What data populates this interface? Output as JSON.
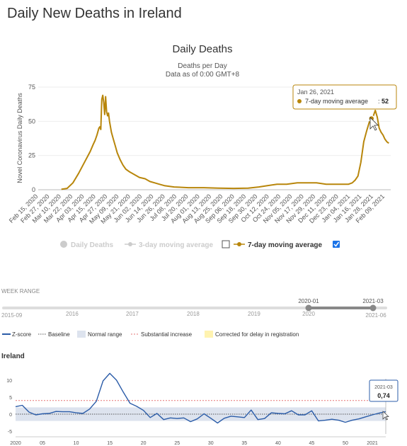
{
  "page": {
    "title": "Daily New Deaths in Ireland"
  },
  "colors": {
    "deaths_line": "#b8860b",
    "disabled_legend": "#cccccc",
    "checkbox_checked": "#1a73e8",
    "zscore_line": "#2b5ca8",
    "baseline": "#555555",
    "normal_range": "#dde3ee",
    "substantial_increase": "#e57373",
    "delay_correction": "#fff3b0",
    "week_range_track": "#dddddd",
    "week_range_selected": "#888888"
  },
  "chart_data": [
    {
      "type": "line",
      "title": "Daily Deaths",
      "subtitle": "Deaths per Day",
      "subtitle2": "Data as of 0:00 GMT+8",
      "ylabel": "Novel Coronavirus Daily Deaths",
      "ylim": [
        0,
        75
      ],
      "yticks": [
        "0",
        "25",
        "50",
        "75"
      ],
      "grid": true,
      "xtick_labels": [
        "Feb 15, 2020",
        "Feb 27, 2020",
        "Mar 10, 2020",
        "Mar 22, 2020",
        "Apr 03, 2020",
        "Apr 15, 2020",
        "Apr 27, 2020",
        "May 09, 2020",
        "May 21, 2020",
        "Jun 02, 2020",
        "Jun 14, 2020",
        "Jun 26, 2020",
        "Jul 08, 2020",
        "Jul 20, 2020",
        "Aug 01, 2020",
        "Aug 13, 2020",
        "Aug 25, 2020",
        "Sep 06, 2020",
        "Sep 18, 2020",
        "Sep 30, 2020",
        "Oct 12, 2020",
        "Oct 24, 2020",
        "Nov 05, 2020",
        "Nov 17, 2020",
        "Nov 29, 2020",
        "Dec 11, 2020",
        "Dec 23, 2020",
        "Jan 04, 2021",
        "Jan 16, 2021",
        "Jan 28, 2021",
        "Feb 09, 2021"
      ],
      "legend": [
        {
          "label": "Daily Deaths",
          "enabled": false
        },
        {
          "label": "3-day moving average",
          "enabled": false
        },
        {
          "label": "7-day moving average",
          "enabled": true
        }
      ],
      "series": [
        {
          "name": "7-day moving average",
          "x": [
            "2020-03-10",
            "2020-03-16",
            "2020-03-22",
            "2020-03-28",
            "2020-04-03",
            "2020-04-09",
            "2020-04-12",
            "2020-04-14",
            "2020-04-16",
            "2020-04-18",
            "2020-04-19",
            "2020-04-20",
            "2020-04-21",
            "2020-04-22",
            "2020-04-23",
            "2020-04-24",
            "2020-04-25",
            "2020-04-26",
            "2020-04-27",
            "2020-04-28",
            "2020-04-29",
            "2020-05-01",
            "2020-05-03",
            "2020-05-05",
            "2020-05-07",
            "2020-05-10",
            "2020-05-13",
            "2020-05-16",
            "2020-05-20",
            "2020-05-25",
            "2020-05-30",
            "2020-06-05",
            "2020-06-10",
            "2020-06-15",
            "2020-06-20",
            "2020-06-25",
            "2020-07-05",
            "2020-07-20",
            "2020-08-05",
            "2020-08-20",
            "2020-09-05",
            "2020-09-20",
            "2020-10-01",
            "2020-10-10",
            "2020-10-20",
            "2020-10-30",
            "2020-11-10",
            "2020-11-20",
            "2020-11-30",
            "2020-12-10",
            "2020-12-20",
            "2020-12-28",
            "2021-01-02",
            "2021-01-06",
            "2021-01-09",
            "2021-01-12",
            "2021-01-15",
            "2021-01-18",
            "2021-01-21",
            "2021-01-24",
            "2021-01-26",
            "2021-01-28",
            "2021-01-30",
            "2021-02-01",
            "2021-02-03",
            "2021-02-05",
            "2021-02-07",
            "2021-02-09",
            "2021-02-11",
            "2021-02-13"
          ],
          "y": [
            0.3,
            1,
            5,
            12,
            20,
            28,
            33,
            36,
            40,
            45,
            46,
            44,
            66,
            69,
            64,
            55,
            68,
            57,
            54,
            56,
            50,
            42,
            37,
            32,
            27,
            22,
            18,
            15,
            13,
            11,
            9,
            8,
            6,
            5,
            4,
            3,
            2,
            1.5,
            1.5,
            1.2,
            1,
            1.2,
            2,
            3,
            4,
            4,
            5,
            5,
            5,
            4,
            4,
            4,
            4,
            5,
            7,
            10,
            20,
            35,
            43,
            50,
            52,
            54,
            58,
            53,
            45,
            42,
            40,
            37,
            35,
            34
          ]
        }
      ],
      "tooltip": {
        "date": "Jan 26, 2021",
        "series": "7-day moving average",
        "value": "52",
        "text": "7-day moving average: 52"
      }
    },
    {
      "type": "line",
      "title": "Ireland",
      "yticks": [
        "-5",
        "0",
        "5",
        "10"
      ],
      "ylim": [
        -5,
        12
      ],
      "xtick_labels": [
        "2020",
        "05",
        "10",
        "15",
        "20",
        "25",
        "30",
        "35",
        "40",
        "45",
        "50",
        "2021"
      ],
      "legend": [
        {
          "label": "Z-score",
          "style": "line"
        },
        {
          "label": "Baseline",
          "style": "dotted"
        },
        {
          "label": "Normal range",
          "style": "box"
        },
        {
          "label": "Substantial increase",
          "style": "dashed"
        },
        {
          "label": "Corrected for delay in registration",
          "style": "box"
        }
      ],
      "normal_range": [
        -2,
        2
      ],
      "substantial_increase": 4,
      "baseline": 0,
      "series": [
        {
          "name": "Z-score",
          "x": [
            "2020-01",
            "2020-02",
            "2020-03",
            "2020-04",
            "2020-05",
            "2020-06",
            "2020-07",
            "2020-08",
            "2020-09",
            "2020-10",
            "2020-11",
            "2020-12",
            "2020-13",
            "2020-14",
            "2020-15",
            "2020-16",
            "2020-17",
            "2020-18",
            "2020-19",
            "2020-20",
            "2020-21",
            "2020-22",
            "2020-23",
            "2020-24",
            "2020-25",
            "2020-26",
            "2020-27",
            "2020-28",
            "2020-29",
            "2020-30",
            "2020-31",
            "2020-32",
            "2020-33",
            "2020-34",
            "2020-35",
            "2020-36",
            "2020-37",
            "2020-38",
            "2020-39",
            "2020-40",
            "2020-41",
            "2020-42",
            "2020-43",
            "2020-44",
            "2020-45",
            "2020-46",
            "2020-47",
            "2020-48",
            "2020-49",
            "2020-50",
            "2020-51",
            "2020-52",
            "2020-53",
            "2021-01",
            "2021-02",
            "2021-03"
          ],
          "y": [
            2.2,
            2.6,
            0.6,
            -0.2,
            0.1,
            0.2,
            0.8,
            0.7,
            0.7,
            0.4,
            0.2,
            1.5,
            3.8,
            9.8,
            12.0,
            10.0,
            6.5,
            3.2,
            2.3,
            1.1,
            -1.0,
            0.2,
            -1.6,
            -1.1,
            -1.3,
            -1.1,
            -2.2,
            -1.4,
            0.1,
            -1.2,
            -2.6,
            -1.2,
            -0.6,
            -0.8,
            -1.0,
            1.2,
            -1.6,
            -1.3,
            0.4,
            0.2,
            0.1,
            1.0,
            -0.2,
            -0.2,
            1.0,
            -2.0,
            -1.8,
            -1.5,
            -1.8,
            -2.4,
            -1.8,
            -1.4,
            -0.8,
            -0.2,
            0.3,
            0.74
          ]
        }
      ],
      "tooltip": {
        "label": "2021-03",
        "value": "0,74"
      }
    }
  ],
  "week_range": {
    "title": "WEEK RANGE",
    "start_label": "2015-09",
    "end_label": "2021-06",
    "year_labels": [
      "2016",
      "2017",
      "2018",
      "2019",
      "2020"
    ],
    "selected_start": "2020-01",
    "selected_end": "2021-03"
  }
}
